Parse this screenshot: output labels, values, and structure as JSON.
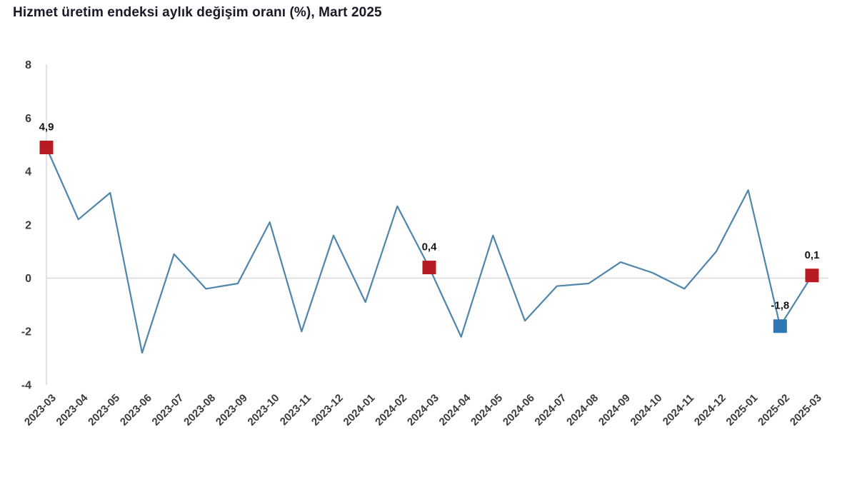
{
  "title": "Hizmet üretim endeksi aylık değişim oranı (%), Mart 2025",
  "colors": {
    "background": "#ffffff",
    "line": "#4e85ab",
    "marker_red": "#b71c22",
    "marker_blue": "#2e78b7",
    "grid": "#d9d9d9",
    "tick_text": "#3b3b3b",
    "data_label_text": "#141414",
    "title_text": "#191927"
  },
  "chart_data": {
    "type": "line",
    "title": "Hizmet üretim endeksi aylık değişim oranı (%), Mart 2025",
    "x": [
      "2023-03",
      "2023-04",
      "2023-05",
      "2023-06",
      "2023-07",
      "2023-08",
      "2023-09",
      "2023-10",
      "2023-11",
      "2023-12",
      "2024-01",
      "2024-02",
      "2024-03",
      "2024-04",
      "2024-05",
      "2024-06",
      "2024-07",
      "2024-08",
      "2024-09",
      "2024-10",
      "2024-11",
      "2024-12",
      "2025-01",
      "2025-02",
      "2025-03"
    ],
    "values": [
      4.9,
      2.2,
      3.2,
      -2.8,
      0.9,
      -0.4,
      -0.2,
      2.1,
      -2.0,
      1.6,
      -0.9,
      2.7,
      0.4,
      -2.2,
      1.6,
      -1.6,
      -0.3,
      -0.2,
      0.6,
      0.2,
      -0.4,
      1.0,
      3.3,
      -1.8,
      0.1
    ],
    "ylim": [
      -4,
      8
    ],
    "yticks": [
      8,
      6,
      4,
      2,
      0,
      -2,
      -4
    ],
    "xlabel": "",
    "ylabel": "",
    "grid": "zero-line-only",
    "legend": "none",
    "number_format": "tr-decimal-comma",
    "annotated_points": [
      {
        "x": "2023-03",
        "value": 4.9,
        "label": "4,9",
        "marker": "red-square"
      },
      {
        "x": "2024-03",
        "value": 0.4,
        "label": "0,4",
        "marker": "red-square"
      },
      {
        "x": "2025-02",
        "value": -1.8,
        "label": "-1,8",
        "marker": "blue-square"
      },
      {
        "x": "2025-03",
        "value": 0.1,
        "label": "0,1",
        "marker": "red-square"
      }
    ]
  }
}
